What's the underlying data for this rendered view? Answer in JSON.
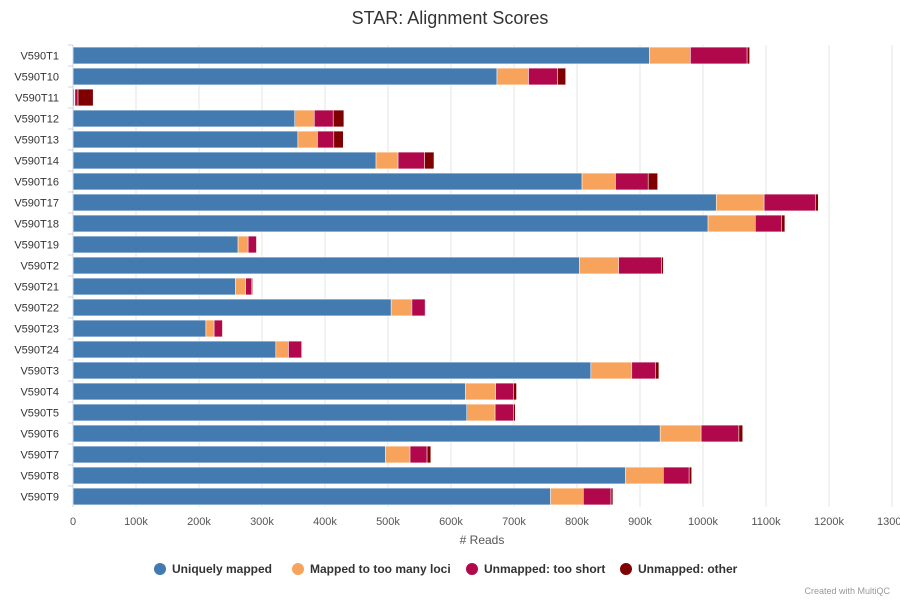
{
  "chart_data": {
    "type": "bar",
    "orientation": "horizontal",
    "stacked": true,
    "title": "STAR: Alignment Scores",
    "xlabel": "# Reads",
    "ylabel": "",
    "xlim": [
      0,
      1300000
    ],
    "x_ticks": [
      0,
      100000,
      200000,
      300000,
      400000,
      500000,
      600000,
      700000,
      800000,
      900000,
      1000000,
      1100000,
      1200000,
      1300000
    ],
    "x_tick_labels": [
      "0",
      "100k",
      "200k",
      "300k",
      "400k",
      "500k",
      "600k",
      "700k",
      "800k",
      "900k",
      "1000k",
      "1100k",
      "1200k",
      "1300k"
    ],
    "grid": true,
    "legend_position": "bottom",
    "categories": [
      "V590T1",
      "V590T10",
      "V590T11",
      "V590T12",
      "V590T13",
      "V590T14",
      "V590T16",
      "V590T17",
      "V590T18",
      "V590T19",
      "V590T2",
      "V590T21",
      "V590T22",
      "V590T23",
      "V590T24",
      "V590T3",
      "V590T4",
      "V590T5",
      "V590T6",
      "V590T7",
      "V590T8",
      "V590T9"
    ],
    "series": [
      {
        "name": "Uniquely mapped",
        "color": "#437bb1",
        "values": [
          915000,
          673000,
          2000,
          352000,
          357000,
          481000,
          808000,
          1021000,
          1008000,
          262000,
          804000,
          258000,
          505000,
          211000,
          322000,
          822000,
          623000,
          625000,
          932000,
          496000,
          877000,
          758000
        ]
      },
      {
        "name": "Mapped to too many loci",
        "color": "#f7a35c",
        "values": [
          65000,
          50000,
          1000,
          31000,
          31000,
          35000,
          53000,
          76000,
          75000,
          16000,
          62000,
          16000,
          33000,
          13000,
          20000,
          65000,
          48000,
          45000,
          65000,
          39000,
          60000,
          52000
        ]
      },
      {
        "name": "Unmapped: too short",
        "color": "#b1084c",
        "values": [
          90000,
          46000,
          5000,
          30000,
          26000,
          42000,
          52000,
          82000,
          42000,
          13000,
          68000,
          9000,
          21000,
          13000,
          21000,
          38000,
          28000,
          29000,
          60000,
          27000,
          41000,
          44000
        ]
      },
      {
        "name": "Unmapped: other",
        "color": "#7f0000",
        "values": [
          4000,
          13000,
          24000,
          17000,
          15000,
          15000,
          15000,
          4000,
          5000,
          1000,
          3000,
          2000,
          1000,
          1000,
          1000,
          5000,
          5000,
          3000,
          6000,
          6000,
          4000,
          3000
        ]
      }
    ],
    "credit": "Created with MultiQC"
  }
}
